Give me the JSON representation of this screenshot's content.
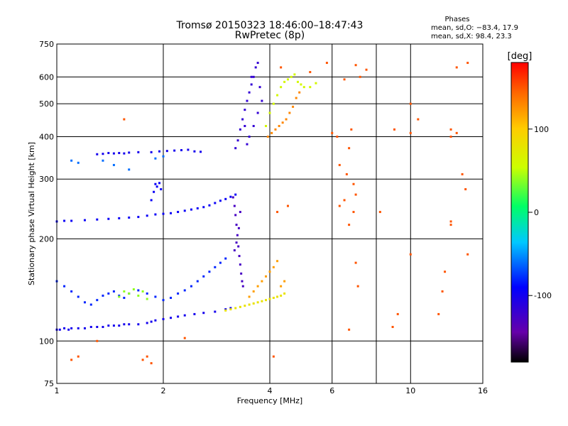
{
  "chart_data": {
    "type": "scatter",
    "title": "Tromsø 20150323 18:46:00–18:47:43",
    "subtitle": "RwPretec (8p)",
    "xlabel": "Frequency [MHz]",
    "ylabel": "Stationary phase Virtual Height [km]",
    "xscale": "log2",
    "yscale": "log",
    "xlim": [
      1,
      16
    ],
    "ylim": [
      75,
      750
    ],
    "x_ticks": [
      1,
      2,
      4,
      6,
      10,
      16
    ],
    "x_grid": [
      1,
      2,
      4,
      6,
      8,
      10,
      16
    ],
    "y_ticks": [
      75,
      100,
      200,
      300,
      400,
      500,
      600,
      750
    ],
    "grid": true,
    "phase_stats": {
      "heading": "Phases",
      "o_line": "mean, sd,O: −83.4, 17.9",
      "x_line": "mean, sd,X:  98.4, 23.3"
    },
    "colorbar": {
      "label": "[deg]",
      "ticks": [
        100,
        0,
        -100
      ],
      "range": [
        -180,
        180
      ]
    },
    "series": [
      {
        "points": [
          [
            1.0,
            108
          ],
          [
            1.02,
            108
          ],
          [
            1.05,
            109
          ],
          [
            1.08,
            108
          ],
          [
            1.1,
            109
          ],
          [
            1.15,
            109
          ],
          [
            1.2,
            109
          ],
          [
            1.25,
            110
          ],
          [
            1.3,
            110
          ],
          [
            1.35,
            110
          ],
          [
            1.4,
            111
          ],
          [
            1.45,
            111
          ],
          [
            1.5,
            111
          ],
          [
            1.55,
            112
          ],
          [
            1.6,
            112
          ],
          [
            1.7,
            112
          ],
          [
            1.8,
            113
          ],
          [
            1.85,
            114
          ],
          [
            1.9,
            115
          ],
          [
            2.0,
            116
          ],
          [
            2.1,
            117
          ],
          [
            2.2,
            118
          ],
          [
            2.3,
            119
          ],
          [
            2.45,
            120
          ],
          [
            2.6,
            121
          ],
          [
            2.8,
            122
          ],
          [
            3.0,
            124
          ],
          [
            3.1,
            125
          ]
        ],
        "phase": -100
      },
      {
        "points": [
          [
            1.0,
            225
          ],
          [
            1.05,
            226
          ],
          [
            1.1,
            226
          ],
          [
            1.2,
            227
          ],
          [
            1.3,
            228
          ],
          [
            1.4,
            229
          ],
          [
            1.5,
            230
          ],
          [
            1.6,
            231
          ],
          [
            1.7,
            232
          ],
          [
            1.8,
            234
          ],
          [
            1.9,
            236
          ],
          [
            2.0,
            237
          ],
          [
            2.1,
            238
          ],
          [
            2.2,
            240
          ],
          [
            2.3,
            242
          ],
          [
            2.4,
            244
          ],
          [
            2.5,
            246
          ],
          [
            2.6,
            248
          ],
          [
            2.7,
            251
          ],
          [
            2.8,
            255
          ],
          [
            2.9,
            259
          ],
          [
            3.0,
            262
          ],
          [
            3.1,
            266
          ],
          [
            3.2,
            270
          ]
        ],
        "phase": -95
      },
      {
        "points": [
          [
            1.3,
            355
          ],
          [
            1.35,
            356
          ],
          [
            1.4,
            358
          ],
          [
            1.45,
            357
          ],
          [
            1.5,
            358
          ],
          [
            1.55,
            357
          ],
          [
            1.6,
            359
          ],
          [
            1.7,
            360
          ],
          [
            1.85,
            360
          ],
          [
            1.95,
            362
          ],
          [
            2.05,
            363
          ],
          [
            2.15,
            364
          ],
          [
            2.25,
            365
          ],
          [
            2.35,
            366
          ],
          [
            2.45,
            362
          ],
          [
            2.55,
            361
          ]
        ],
        "phase": -100
      },
      {
        "points": [
          [
            1.85,
            260
          ],
          [
            1.88,
            275
          ],
          [
            1.9,
            290
          ],
          [
            1.92,
            285
          ],
          [
            1.95,
            292
          ],
          [
            1.97,
            280
          ]
        ],
        "phase": -95
      },
      {
        "points": [
          [
            3.15,
            265
          ],
          [
            3.18,
            250
          ],
          [
            3.2,
            235
          ],
          [
            3.22,
            220
          ],
          [
            3.24,
            205
          ],
          [
            3.26,
            190
          ],
          [
            3.28,
            178
          ],
          [
            3.3,
            168
          ],
          [
            3.32,
            158
          ],
          [
            3.34,
            150
          ],
          [
            3.36,
            145
          ],
          [
            3.3,
            240
          ],
          [
            3.27,
            215
          ],
          [
            3.22,
            195
          ],
          [
            3.18,
            185
          ]
        ],
        "phase": -125
      },
      {
        "points": [
          [
            3.2,
            370
          ],
          [
            3.25,
            390
          ],
          [
            3.3,
            420
          ],
          [
            3.35,
            450
          ],
          [
            3.4,
            480
          ],
          [
            3.45,
            510
          ],
          [
            3.5,
            540
          ],
          [
            3.55,
            570
          ],
          [
            3.6,
            600
          ],
          [
            3.65,
            640
          ],
          [
            3.7,
            660
          ],
          [
            3.5,
            400
          ],
          [
            3.45,
            380
          ],
          [
            3.6,
            430
          ],
          [
            3.7,
            470
          ],
          [
            3.8,
            510
          ],
          [
            3.55,
            600
          ],
          [
            3.75,
            560
          ],
          [
            3.4,
            430
          ]
        ],
        "phase": -115
      },
      {
        "points": [
          [
            3.9,
            430
          ],
          [
            4.0,
            470
          ],
          [
            4.1,
            500
          ],
          [
            4.2,
            530
          ],
          [
            4.3,
            560
          ],
          [
            4.4,
            580
          ],
          [
            4.5,
            590
          ],
          [
            4.6,
            600
          ],
          [
            4.7,
            610
          ],
          [
            4.8,
            580
          ],
          [
            4.9,
            570
          ],
          [
            5.0,
            560
          ],
          [
            5.2,
            560
          ],
          [
            5.4,
            575
          ]
        ],
        "phase": 60
      },
      {
        "points": [
          [
            3.95,
            400
          ],
          [
            4.05,
            410
          ],
          [
            4.15,
            420
          ],
          [
            4.25,
            430
          ],
          [
            4.35,
            440
          ],
          [
            4.45,
            450
          ],
          [
            4.55,
            470
          ],
          [
            4.65,
            490
          ],
          [
            4.75,
            520
          ],
          [
            4.85,
            540
          ]
        ],
        "phase": 130
      },
      {
        "points": [
          [
            3.0,
            123
          ],
          [
            3.1,
            124
          ],
          [
            3.2,
            125
          ],
          [
            3.3,
            126
          ],
          [
            3.4,
            127
          ],
          [
            3.5,
            128
          ],
          [
            3.6,
            129
          ],
          [
            3.7,
            130
          ],
          [
            3.8,
            131
          ],
          [
            3.9,
            132
          ],
          [
            4.0,
            133
          ],
          [
            4.1,
            134
          ],
          [
            4.2,
            135
          ],
          [
            4.3,
            136
          ],
          [
            4.4,
            138
          ]
        ],
        "phase": 80
      },
      {
        "points": [
          [
            3.5,
            135
          ],
          [
            3.6,
            140
          ],
          [
            3.7,
            145
          ],
          [
            3.8,
            150
          ],
          [
            3.9,
            155
          ],
          [
            4.0,
            160
          ],
          [
            4.1,
            165
          ],
          [
            4.2,
            172
          ],
          [
            4.3,
            145
          ],
          [
            4.4,
            150
          ]
        ],
        "phase": 120
      },
      {
        "points": [
          [
            1.0,
            150
          ],
          [
            1.05,
            145
          ],
          [
            1.1,
            140
          ],
          [
            1.15,
            135
          ],
          [
            1.2,
            130
          ],
          [
            1.25,
            128
          ],
          [
            1.3,
            132
          ],
          [
            1.35,
            136
          ],
          [
            1.4,
            138
          ],
          [
            1.45,
            140
          ],
          [
            1.5,
            136
          ],
          [
            1.55,
            134
          ],
          [
            1.6,
            138
          ],
          [
            1.7,
            141
          ],
          [
            1.8,
            138
          ],
          [
            1.9,
            135
          ],
          [
            2.0,
            132
          ],
          [
            2.1,
            134
          ],
          [
            2.2,
            138
          ],
          [
            2.3,
            141
          ],
          [
            2.4,
            145
          ],
          [
            2.5,
            150
          ],
          [
            2.6,
            155
          ],
          [
            2.7,
            160
          ],
          [
            2.8,
            165
          ],
          [
            2.9,
            170
          ],
          [
            3.0,
            175
          ]
        ],
        "phase": -80
      },
      {
        "points": [
          [
            1.5,
            135
          ],
          [
            1.55,
            140
          ],
          [
            1.6,
            138
          ],
          [
            1.65,
            142
          ],
          [
            1.7,
            136
          ],
          [
            1.75,
            140
          ],
          [
            1.8,
            133
          ]
        ],
        "phase": 40
      },
      {
        "points": [
          [
            1.1,
            340
          ],
          [
            1.15,
            335
          ],
          [
            1.35,
            340
          ],
          [
            1.45,
            330
          ],
          [
            1.6,
            320
          ],
          [
            1.9,
            345
          ],
          [
            2.0,
            350
          ]
        ],
        "phase": -60
      },
      {
        "points": [
          [
            1.55,
            450
          ],
          [
            1.1,
            88
          ],
          [
            1.15,
            90
          ],
          [
            1.3,
            100
          ],
          [
            1.75,
            88
          ],
          [
            1.8,
            90
          ],
          [
            1.85,
            86
          ],
          [
            2.3,
            102
          ],
          [
            4.1,
            90
          ],
          [
            6.3,
            330
          ],
          [
            6.6,
            310
          ],
          [
            6.9,
            290
          ],
          [
            7.0,
            270
          ],
          [
            6.5,
            260
          ],
          [
            6.9,
            240
          ],
          [
            6.2,
            400
          ],
          [
            6.8,
            420
          ],
          [
            6.3,
            250
          ],
          [
            4.5,
            250
          ],
          [
            4.2,
            240
          ],
          [
            6.7,
            220
          ],
          [
            7.0,
            170
          ],
          [
            7.1,
            145
          ],
          [
            6.7,
            108
          ],
          [
            8.2,
            240
          ],
          [
            8.9,
            110
          ],
          [
            9.2,
            120
          ],
          [
            10.0,
            180
          ],
          [
            10.5,
            450
          ],
          [
            12.0,
            120
          ],
          [
            12.3,
            140
          ],
          [
            12.5,
            160
          ],
          [
            13.0,
            400
          ],
          [
            13.0,
            420
          ],
          [
            13.0,
            220
          ],
          [
            13.0,
            225
          ],
          [
            13.5,
            410
          ],
          [
            14.0,
            310
          ],
          [
            14.3,
            280
          ],
          [
            14.5,
            180
          ],
          [
            14.5,
            660
          ],
          [
            13.5,
            640
          ],
          [
            7.5,
            630
          ],
          [
            7.2,
            600
          ],
          [
            6.5,
            590
          ],
          [
            6.0,
            410
          ],
          [
            5.8,
            660
          ],
          [
            5.2,
            620
          ],
          [
            9.0,
            420
          ],
          [
            10.0,
            410
          ],
          [
            10.0,
            500
          ],
          [
            6.7,
            370
          ],
          [
            7.0,
            650
          ],
          [
            4.3,
            640
          ]
        ],
        "phase": 150
      }
    ]
  }
}
